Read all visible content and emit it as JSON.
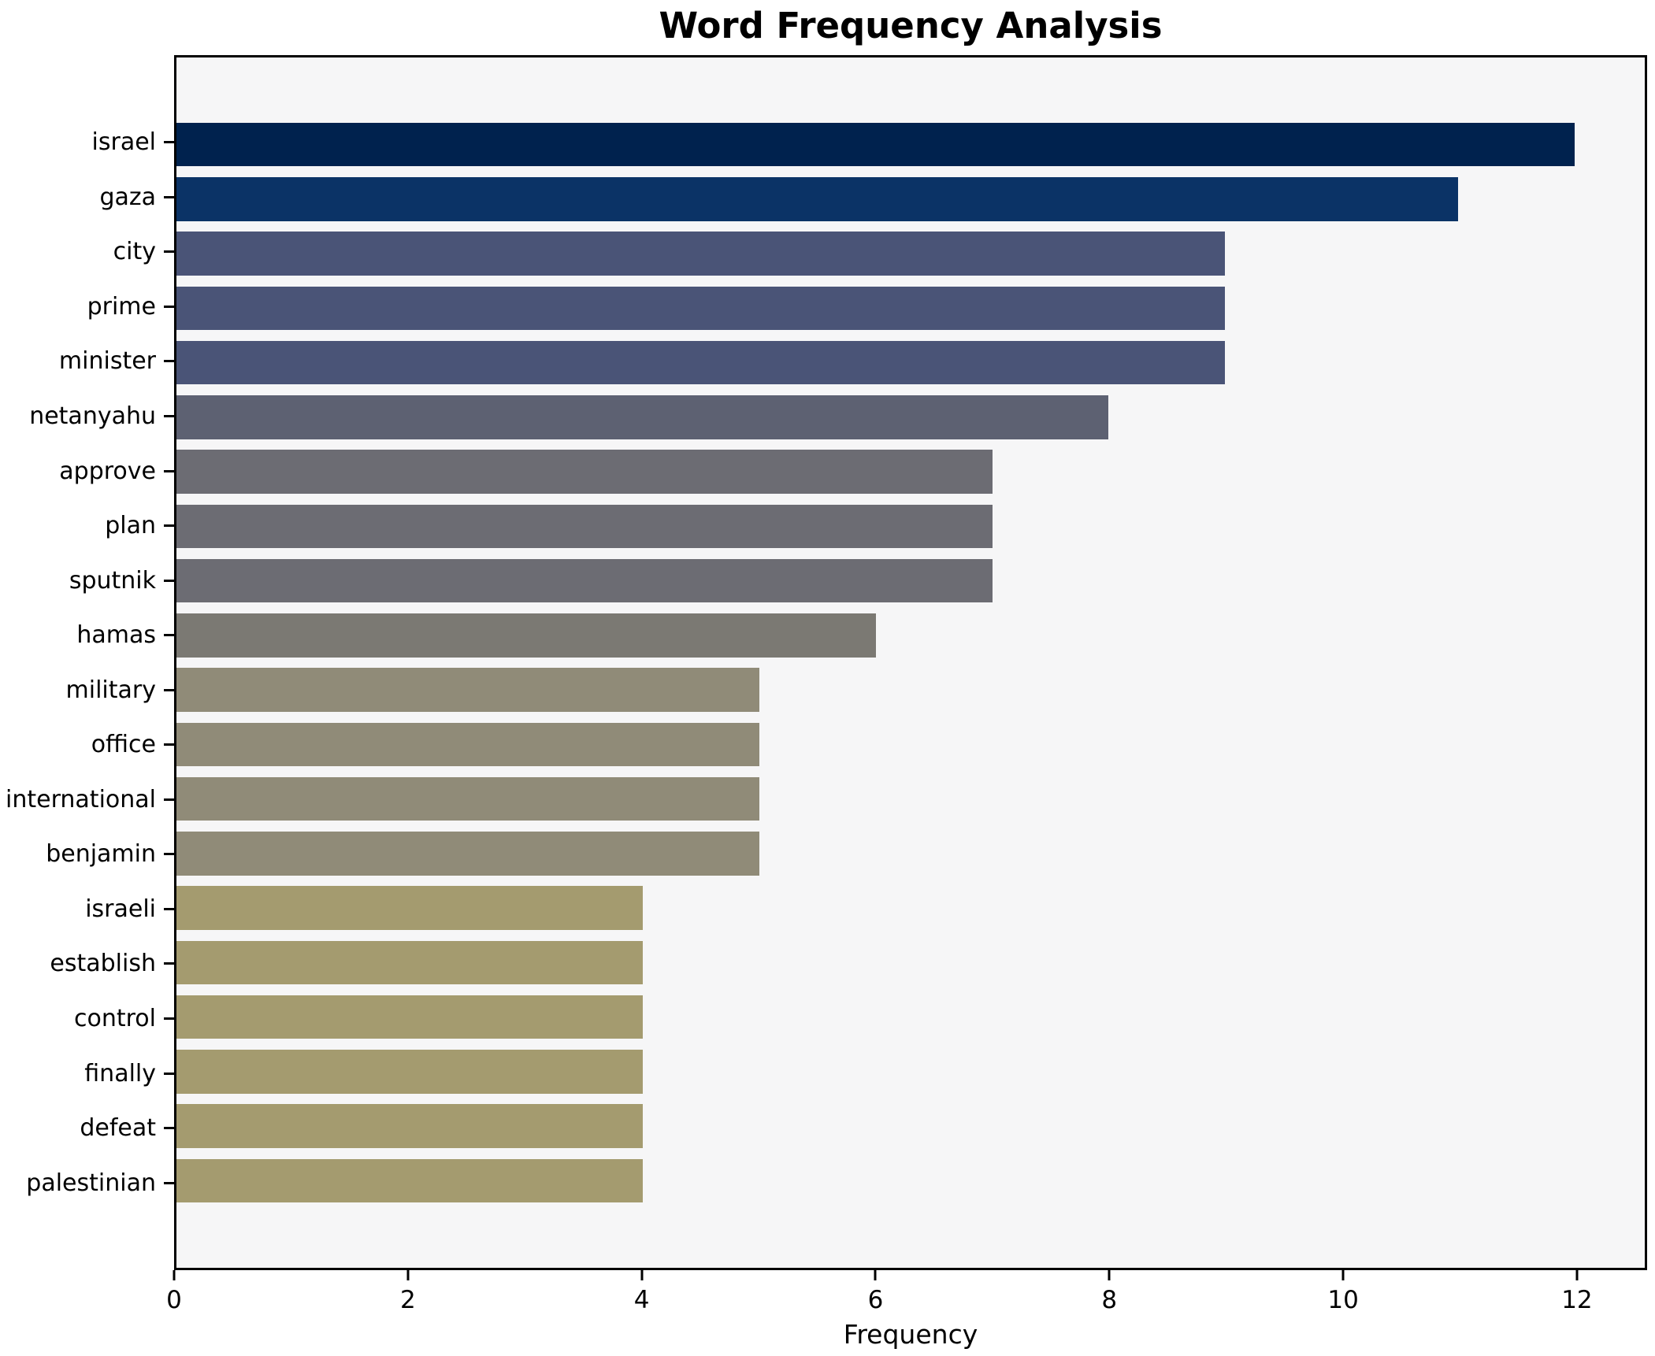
{
  "title": "Word Frequency Analysis",
  "chart_data": {
    "type": "bar",
    "orientation": "horizontal",
    "title": "Word Frequency Analysis",
    "xlabel": "Frequency",
    "ylabel": "",
    "categories": [
      "israel",
      "gaza",
      "city",
      "prime",
      "minister",
      "netanyahu",
      "approve",
      "plan",
      "sputnik",
      "hamas",
      "military",
      "office",
      "international",
      "benjamin",
      "israeli",
      "establish",
      "control",
      "finally",
      "defeat",
      "palestinian"
    ],
    "values": [
      12,
      11,
      9,
      9,
      9,
      8,
      7,
      7,
      7,
      6,
      5,
      5,
      5,
      5,
      4,
      4,
      4,
      4,
      4,
      4
    ],
    "bar_colors": [
      "#00224e",
      "#0b3366",
      "#4a5477",
      "#4a5477",
      "#4a5477",
      "#5d6172",
      "#6c6c73",
      "#6c6c73",
      "#6c6c73",
      "#7b7973",
      "#908b78",
      "#908b78",
      "#908b78",
      "#908b78",
      "#a49b6f",
      "#a49b6f",
      "#a49b6f",
      "#a49b6f",
      "#a49b6f",
      "#a49b6f"
    ],
    "xlim": [
      0,
      12.6
    ],
    "xticks": [
      0,
      2,
      4,
      6,
      8,
      10,
      12
    ],
    "grid": false,
    "legend": "none",
    "plot_bg": "#f6f6f7",
    "figure_bg": "#ffffff",
    "spine_color": "#000000",
    "colormap": "cividis"
  }
}
